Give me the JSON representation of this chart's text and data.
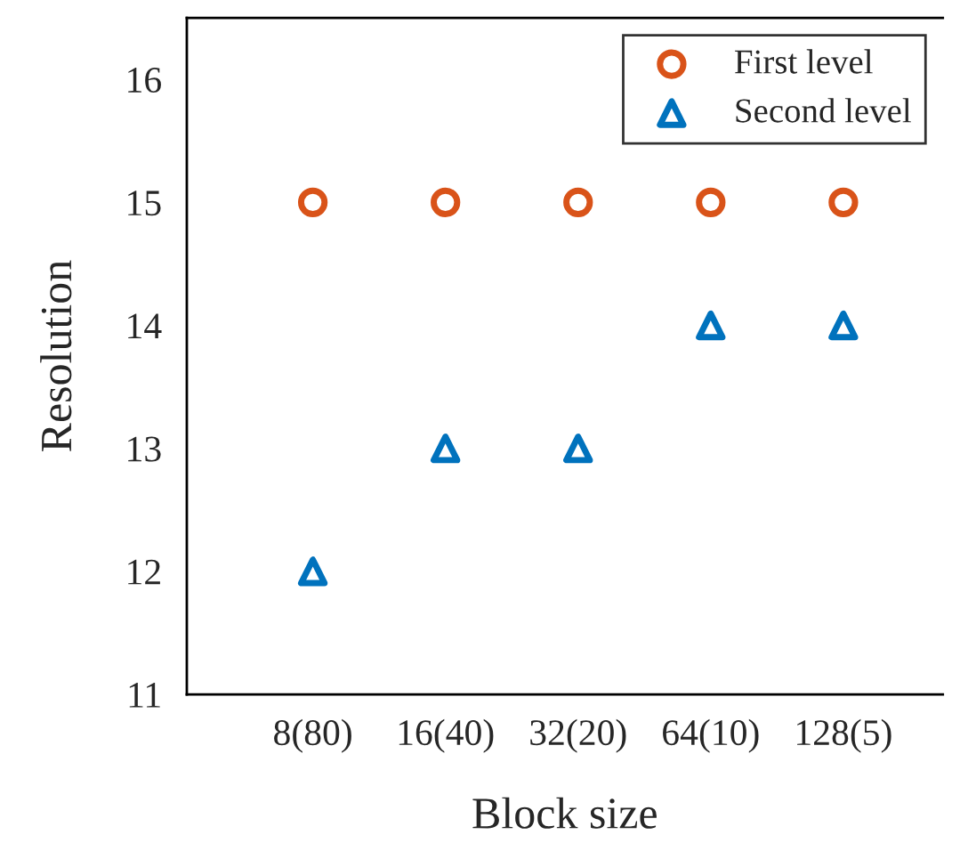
{
  "chart_data": {
    "type": "scatter",
    "xlabel": "Block size",
    "ylabel": "Resolution",
    "categories": [
      "8(80)",
      "16(40)",
      "32(20)",
      "64(10)",
      "128(5)"
    ],
    "series": [
      {
        "name": "First level",
        "color": "#d95319",
        "marker": "circle",
        "values": [
          15,
          15,
          15,
          15,
          15
        ]
      },
      {
        "name": "Second level",
        "color": "#0072bd",
        "marker": "triangle",
        "values": [
          12,
          13,
          13,
          14,
          14
        ]
      }
    ],
    "ylim": [
      11,
      16.5
    ],
    "yticks": [
      11,
      12,
      13,
      14,
      15,
      16
    ],
    "grid": false,
    "legend": "top right"
  }
}
